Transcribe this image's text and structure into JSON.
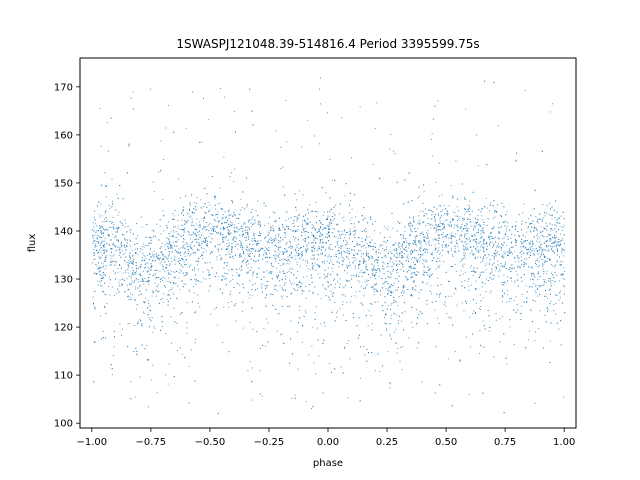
{
  "chart_data": {
    "type": "scatter",
    "title": "1SWASPJ121048.39-514816.4 Period 3395599.75s",
    "xlabel": "phase",
    "ylabel": "flux",
    "xlim": [
      -1.05,
      1.05
    ],
    "ylim": [
      99,
      176
    ],
    "xticks": [
      -1.0,
      -0.75,
      -0.5,
      -0.25,
      0.0,
      0.25,
      0.5,
      0.75,
      1.0
    ],
    "xtick_labels": [
      "−1.00",
      "−0.75",
      "−0.50",
      "−0.25",
      "0.00",
      "0.25",
      "0.50",
      "0.75",
      "1.00"
    ],
    "yticks": [
      100,
      110,
      120,
      130,
      140,
      150,
      160,
      170
    ],
    "ytick_labels": [
      "100",
      "110",
      "120",
      "130",
      "140",
      "150",
      "160",
      "170"
    ],
    "grid": false,
    "marker_color": "#1f77b4",
    "series": [
      {
        "x_range": [
          -1.0,
          1.0
        ],
        "symmetry": "phase-folded light curve repeated with period 1.0 in phase",
        "core_band": [
          128,
          146
        ],
        "outlier_range": [
          102,
          172
        ],
        "profile": [
          {
            "phase": 0.0,
            "flux_mean": 137
          },
          {
            "phase": 0.1,
            "flux_mean": 138
          },
          {
            "phase": 0.2,
            "flux_mean": 132
          },
          {
            "phase": 0.25,
            "flux_mean": 133
          },
          {
            "phase": 0.3,
            "flux_mean": 135
          },
          {
            "phase": 0.4,
            "flux_mean": 138
          },
          {
            "phase": 0.5,
            "flux_mean": 140
          },
          {
            "phase": 0.6,
            "flux_mean": 139
          },
          {
            "phase": 0.7,
            "flux_mean": 137
          },
          {
            "phase": 0.8,
            "flux_mean": 136
          },
          {
            "phase": 0.9,
            "flux_mean": 137
          },
          {
            "phase": 1.0,
            "flux_mean": 137
          }
        ]
      }
    ]
  }
}
